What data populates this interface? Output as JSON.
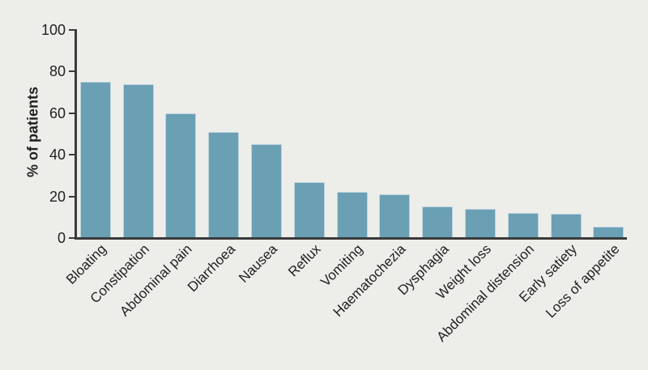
{
  "figure": {
    "background_color": "#EDEDEA"
  },
  "chart_data": {
    "type": "bar",
    "title": "",
    "ylabel": "% of patients",
    "xlabel": "",
    "ylim": [
      0,
      100
    ],
    "yticks": [
      0,
      20,
      40,
      60,
      80,
      100
    ],
    "grid": "off",
    "legend": "none",
    "categories": [
      "Bloating",
      "Constipation",
      "Abdominal pain",
      "Diarrhoea",
      "Nausea",
      "Reflux",
      "Vomiting",
      "Haematochezia",
      "Dysphagia",
      "Weight loss",
      "Abdominal distension",
      "Early satiety",
      "Loss of appetite"
    ],
    "values": [
      75,
      74,
      60,
      51,
      45,
      27,
      22,
      21,
      15,
      14,
      12,
      11.5,
      5.5
    ],
    "unit": "%",
    "colors": {
      "bar_fill": "#6BA0B4",
      "bar_outline": "#E7ECEC",
      "axis": "#3A3A3A",
      "text": "#231F20",
      "background": "#EDEDEA"
    }
  }
}
